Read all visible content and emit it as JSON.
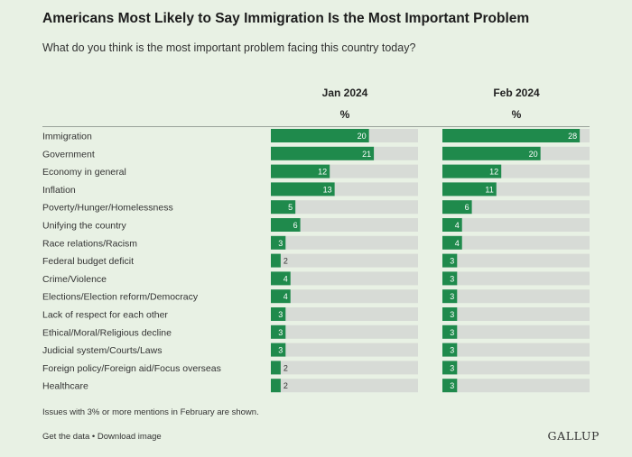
{
  "title": "Americans Most Likely to Say Immigration Is the Most Important Problem",
  "subtitle": "What do you think is the most important problem facing this country today?",
  "colors": {
    "bar": "#1f8a4c",
    "track": "#d7dbd6",
    "background": "#e8f1e4"
  },
  "chart_data": {
    "type": "bar",
    "orientation": "horizontal",
    "categories": [
      "Immigration",
      "Government",
      "Economy in general",
      "Inflation",
      "Poverty/Hunger/Homelessness",
      "Unifying the country",
      "Race relations/Racism",
      "Federal budget deficit",
      "Crime/Violence",
      "Elections/Election reform/Democracy",
      "Lack of respect for each other",
      "Ethical/Moral/Religious decline",
      "Judicial system/Courts/Laws",
      "Foreign policy/Foreign aid/Focus overseas",
      "Healthcare"
    ],
    "series": [
      {
        "name": "Jan 2024",
        "unit": "%",
        "values": [
          20,
          21,
          12,
          13,
          5,
          6,
          3,
          2,
          4,
          4,
          3,
          3,
          3,
          2,
          2
        ]
      },
      {
        "name": "Feb 2024",
        "unit": "%",
        "values": [
          28,
          20,
          12,
          11,
          6,
          4,
          4,
          3,
          3,
          3,
          3,
          3,
          3,
          3,
          3
        ]
      }
    ],
    "xlim": [
      0,
      30
    ]
  },
  "footnote": "Issues with 3% or more mentions in February are shown.",
  "footer": {
    "get_data": "Get the data",
    "separator": " • ",
    "download": "Download image",
    "brand": "GALLUP"
  }
}
